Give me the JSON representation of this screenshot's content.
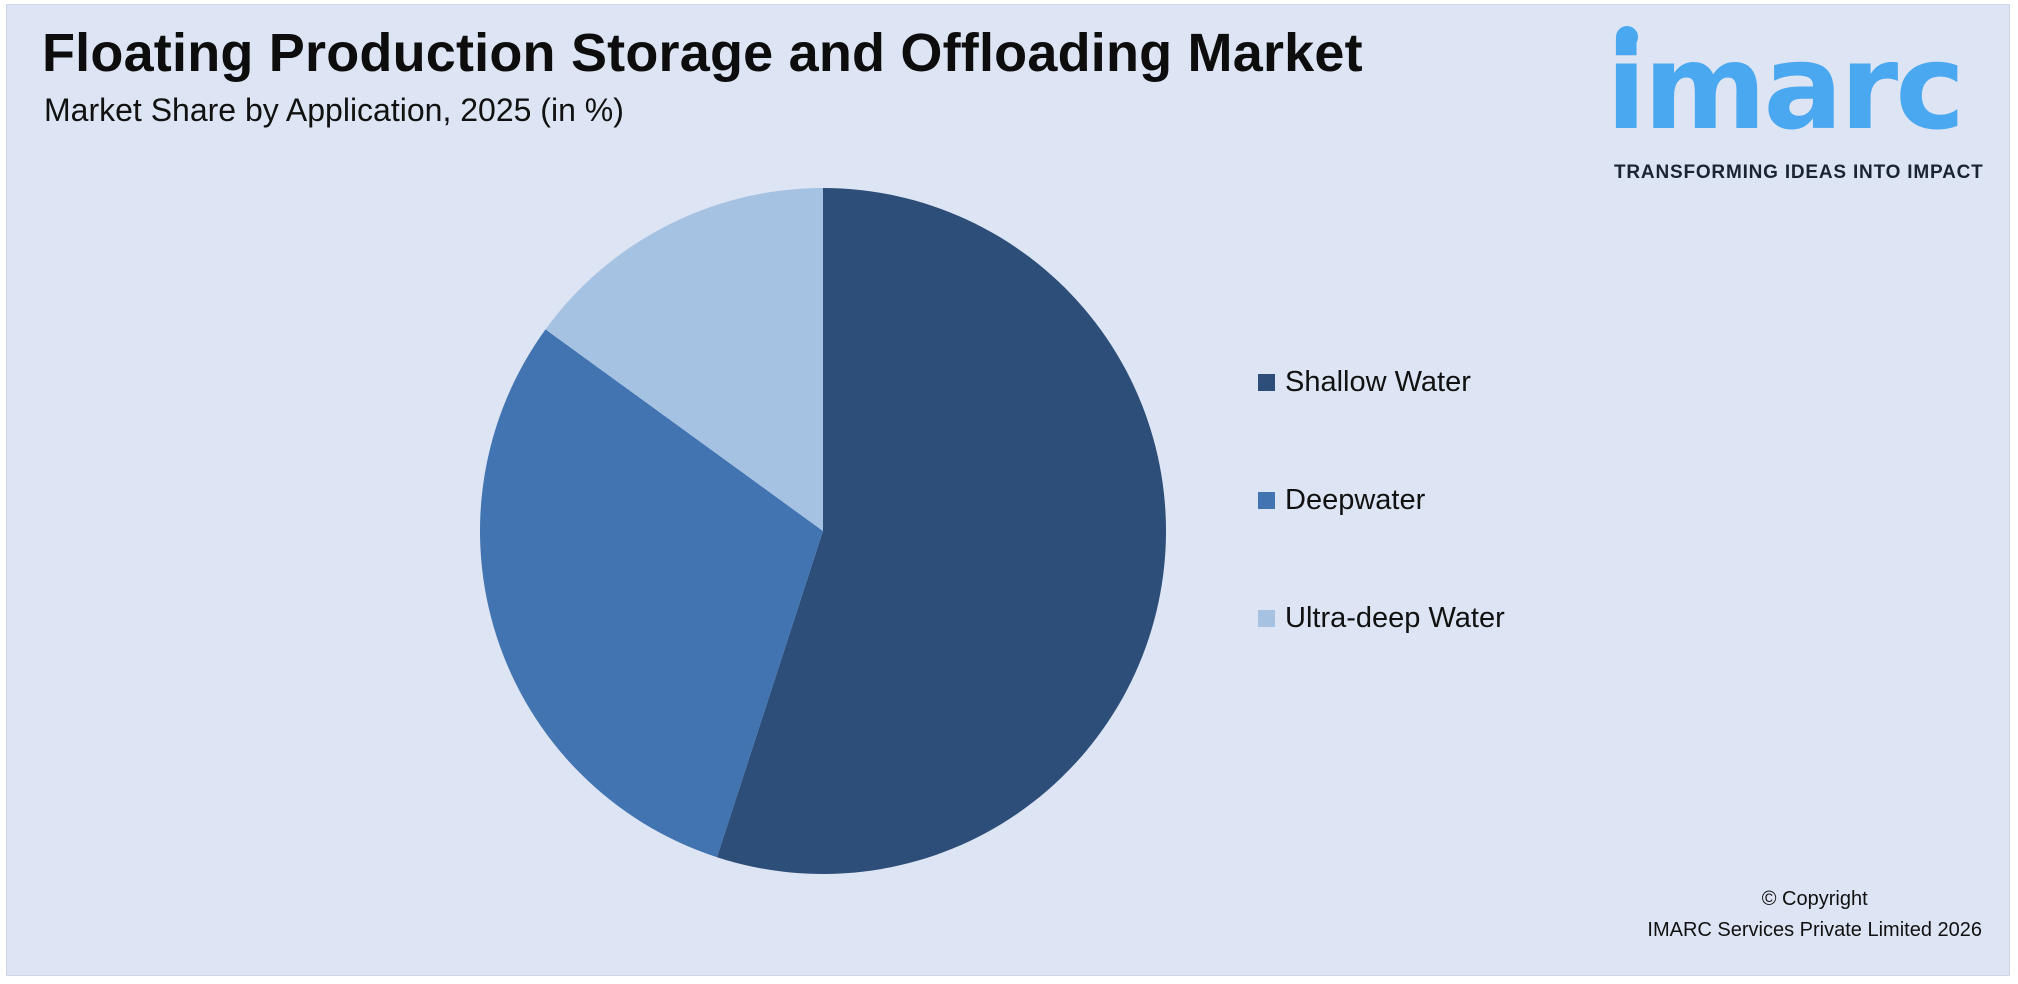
{
  "header": {
    "title": "Floating Production Storage and Offloading Market",
    "subtitle": "Market Share by Application, 2025 (in %)"
  },
  "logo": {
    "wordmark": "imarc",
    "tagline": "TRANSFORMING IDEAS INTO IMPACT",
    "color": "#4aa8f0"
  },
  "chart_data": {
    "type": "pie",
    "title": "Floating Production Storage and Offloading Market",
    "subtitle": "Market Share by Application, 2025 (in %)",
    "categories": [
      "Shallow Water",
      "Deepwater",
      "Ultra-deep Water"
    ],
    "values": [
      55,
      30,
      15
    ],
    "colors": [
      "#2c4e78",
      "#4174b1",
      "#a6c2e3"
    ],
    "start_angle": "12 o'clock",
    "direction": "clockwise",
    "legend_position": "right",
    "data_labels": false
  },
  "footer": {
    "copyright_line1": "© Copyright",
    "copyright_line2": "IMARC Services Private Limited 2026"
  }
}
